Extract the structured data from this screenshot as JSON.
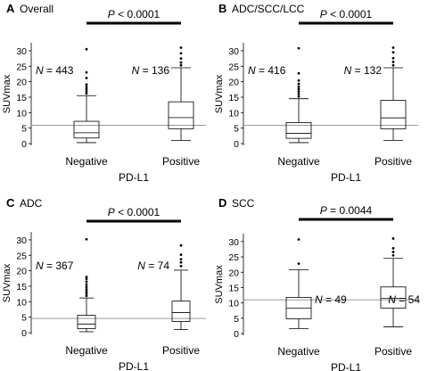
{
  "chart_data": [
    {
      "type": "box",
      "panel_letter": "A",
      "title": "Overall",
      "p_value_text": "P < 0.0001",
      "ylabel": "SUVmax",
      "xlabel": "PD-L1",
      "yticks": [
        0,
        5,
        10,
        15,
        20,
        25,
        30
      ],
      "ylim": [
        0,
        32
      ],
      "reference_line": 5.9,
      "groups": [
        {
          "label": "Negative",
          "n_text": "N = 443",
          "min": 0.3,
          "q1": 1.8,
          "median": 3.5,
          "q3": 7.2,
          "max": 15.5,
          "outliers": [
            16.2,
            16.9,
            17.6,
            18.3,
            19.1,
            21.2,
            23.0,
            30.5
          ]
        },
        {
          "label": "Positive",
          "n_text": "N = 136",
          "min": 1.0,
          "q1": 4.8,
          "median": 8.4,
          "q3": 13.5,
          "max": 24.5,
          "outliers": [
            25.3,
            26.2,
            27.5,
            29.2,
            31.0
          ]
        }
      ]
    },
    {
      "type": "box",
      "panel_letter": "B",
      "title": "ADC/SCC/LCC",
      "p_value_text": "P < 0.0001",
      "ylabel": "SUVmax",
      "xlabel": "PD-L1",
      "yticks": [
        0,
        5,
        10,
        15,
        20,
        25,
        30
      ],
      "ylim": [
        0,
        32
      ],
      "reference_line": 5.9,
      "groups": [
        {
          "label": "Negative",
          "n_text": "N = 416",
          "min": 0.3,
          "q1": 1.7,
          "median": 3.3,
          "q3": 6.8,
          "max": 14.5,
          "outliers": [
            15.2,
            16.0,
            16.8,
            17.6,
            18.4,
            19.3,
            20.4,
            22.7,
            30.8
          ]
        },
        {
          "label": "Positive",
          "n_text": "N = 132",
          "min": 1.0,
          "q1": 4.8,
          "median": 8.3,
          "q3": 14.0,
          "max": 24.5,
          "outliers": [
            25.3,
            26.4,
            27.6,
            29.5,
            31.0
          ]
        }
      ]
    },
    {
      "type": "box",
      "panel_letter": "C",
      "title": "ADC",
      "p_value_text": "P < 0.0001",
      "ylabel": "SUVmax",
      "xlabel": "PD-L1",
      "yticks": [
        0,
        5,
        10,
        15,
        20,
        25,
        30
      ],
      "ylim": [
        0,
        32
      ],
      "reference_line": 4.6,
      "groups": [
        {
          "label": "Negative",
          "n_text": "N = 367",
          "min": 0.3,
          "q1": 1.3,
          "median": 2.8,
          "q3": 5.6,
          "max": 11.2,
          "outliers": [
            11.9,
            12.6,
            13.3,
            14.0,
            14.8,
            15.6,
            16.5,
            17.4,
            18.0,
            30.2
          ]
        },
        {
          "label": "Positive",
          "n_text": "N = 74",
          "min": 1.0,
          "q1": 3.6,
          "median": 6.5,
          "q3": 10.2,
          "max": 20.2,
          "outliers": [
            21.5,
            22.7,
            23.7,
            25.2,
            28.2
          ]
        }
      ]
    },
    {
      "type": "box",
      "panel_letter": "D",
      "title": "SCC",
      "p_value_text": "P = 0.0044",
      "ylabel": "SUVmax",
      "xlabel": "PD-L1",
      "yticks": [
        0,
        5,
        10,
        15,
        20,
        25,
        30
      ],
      "ylim": [
        0,
        32
      ],
      "reference_line": 11.0,
      "groups": [
        {
          "label": "Negative",
          "n_text": "N = 49",
          "min": 1.6,
          "q1": 4.8,
          "median": 8.3,
          "q3": 11.8,
          "max": 20.8,
          "outliers": [
            22.8,
            30.7
          ]
        },
        {
          "label": "Positive",
          "n_text": "N = 54",
          "min": 2.2,
          "q1": 8.3,
          "median": 11.5,
          "q3": 15.2,
          "max": 24.5,
          "outliers": [
            25.5,
            26.6,
            27.8,
            31.0
          ]
        }
      ]
    }
  ]
}
